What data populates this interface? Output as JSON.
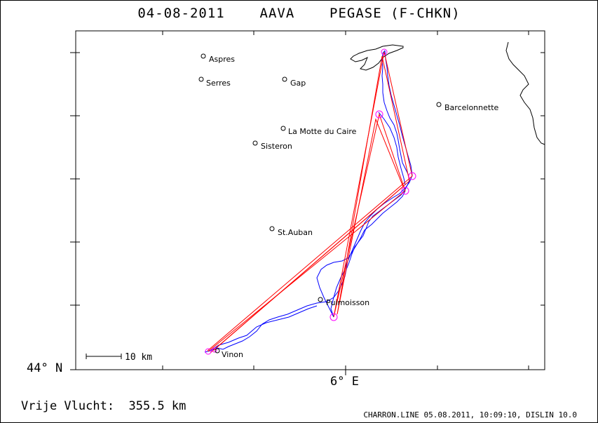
{
  "title": {
    "date": "04-08-2011",
    "club": "AAVA",
    "glider": "PEGASE (F-CHKN)"
  },
  "footer": {
    "distance_label": "Vrije Vlucht:  355.5 km",
    "program_info": "CHARRON.LINE 05.08.2011, 10:09:10, DISLIN 10.0"
  },
  "axes": {
    "lat_label": "44° N",
    "lon_label": "6° E"
  },
  "scale_bar": {
    "label": "10 km"
  },
  "colors": {
    "track": "#0000ff",
    "task": "#ff0000",
    "turnpoint": "#ff00ff",
    "frame": "#000000"
  },
  "places": [
    {
      "name": "Aspres"
    },
    {
      "name": "Serres"
    },
    {
      "name": "Gap"
    },
    {
      "name": "Barcelonnette"
    },
    {
      "name": "La Motte du Caire"
    },
    {
      "name": "Sisteron"
    },
    {
      "name": "St.Auban"
    },
    {
      "name": "Puimoisson"
    },
    {
      "name": "Vinon"
    }
  ]
}
